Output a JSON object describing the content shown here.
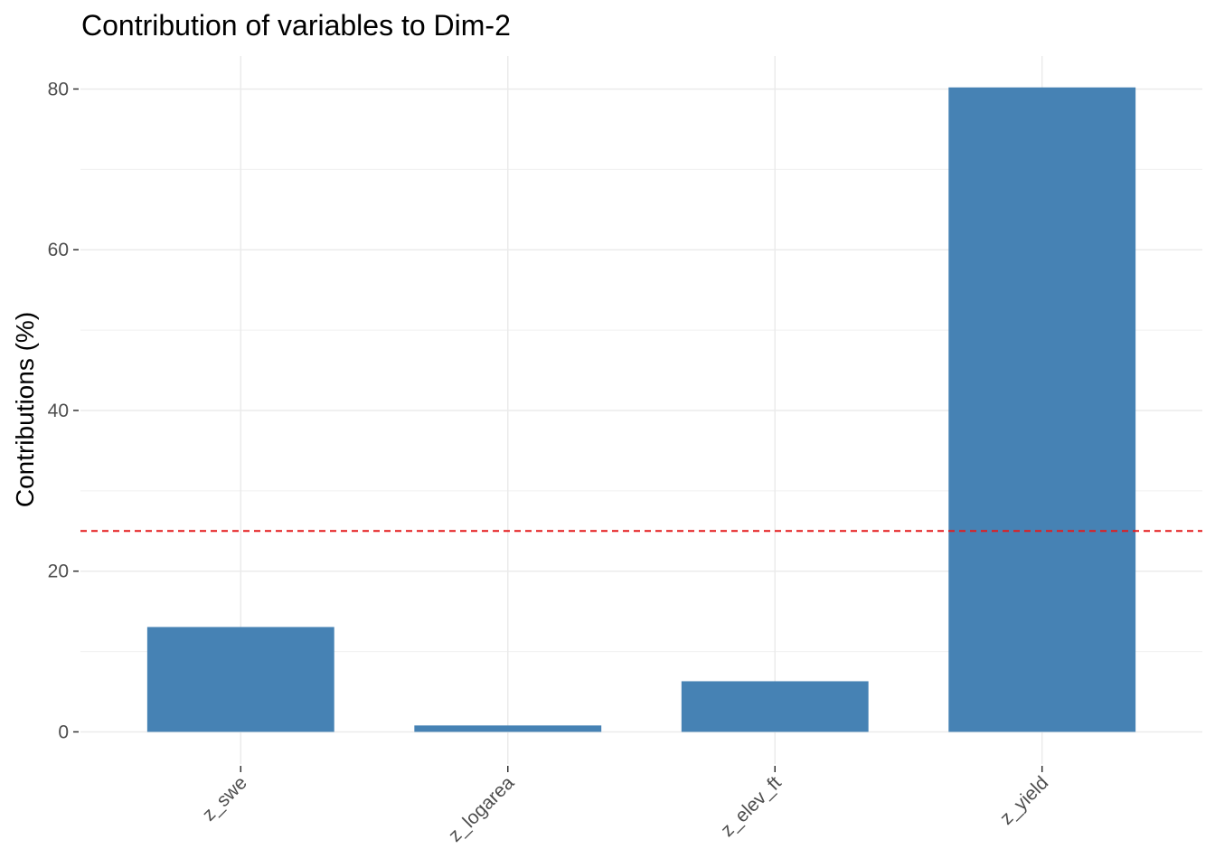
{
  "chart_data": {
    "type": "bar",
    "title": "Contribution of variables to Dim-2",
    "xlabel": "",
    "ylabel": "Contributions (%)",
    "categories": [
      "z_swe",
      "z_logarea",
      "z_elev_ft",
      "z_yield"
    ],
    "values": [
      13.05,
      0.8,
      6.3,
      80.2
    ],
    "ylim": [
      -4.0,
      84.1
    ],
    "yticks": [
      0,
      20,
      40,
      60,
      80
    ],
    "reference_line": {
      "value": 25,
      "style": "dashed",
      "color": "#E41A1C"
    },
    "bar_color": "#4682B4",
    "grid": true
  }
}
